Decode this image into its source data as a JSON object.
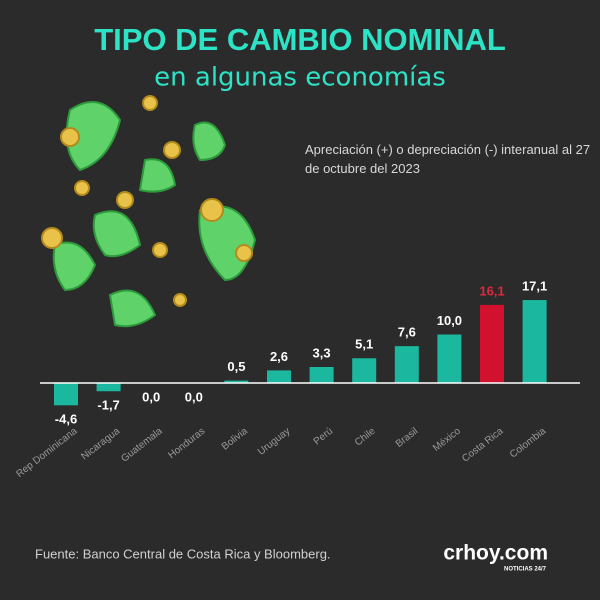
{
  "chart_data": {
    "type": "bar",
    "title": "TIPO DE CAMBIO NOMINAL",
    "subtitle": "en algunas economías",
    "annotation": "Apreciación (+) o depreciación (-) interanual al 27 de octubre del 2023",
    "source": "Fuente: Banco Central de Costa Rica y Bloomberg.",
    "brand": {
      "name": "crhoy.com",
      "tagline": "NOTICIAS 24/7"
    },
    "categories": [
      "Rep Dominicana",
      "Nicaragua",
      "Guatemala",
      "Honduras",
      "Bolivia",
      "Uruguay",
      "Perú",
      "Chile",
      "Brasil",
      "México",
      "Costa Rica",
      "Colombia"
    ],
    "values": [
      -4.6,
      -1.7,
      0.0,
      0.0,
      0.5,
      2.6,
      3.3,
      5.1,
      7.6,
      10.0,
      16.1,
      17.1
    ],
    "value_labels": [
      "-4,6",
      "-1,7",
      "0,0",
      "0,0",
      "0,5",
      "2,6",
      "3,3",
      "5,1",
      "7,6",
      "10,0",
      "16,1",
      "17,1"
    ],
    "colors": [
      "#1bb89f",
      "#1bb89f",
      "#1bb89f",
      "#1bb89f",
      "#1bb89f",
      "#1bb89f",
      "#1bb89f",
      "#1bb89f",
      "#1bb89f",
      "#1bb89f",
      "#d2112e",
      "#1bb89f"
    ],
    "value_label_colors": [
      "#ffffff",
      "#ffffff",
      "#ffffff",
      "#ffffff",
      "#ffffff",
      "#ffffff",
      "#ffffff",
      "#ffffff",
      "#ffffff",
      "#ffffff",
      "#e0283e",
      "#ffffff"
    ]
  }
}
